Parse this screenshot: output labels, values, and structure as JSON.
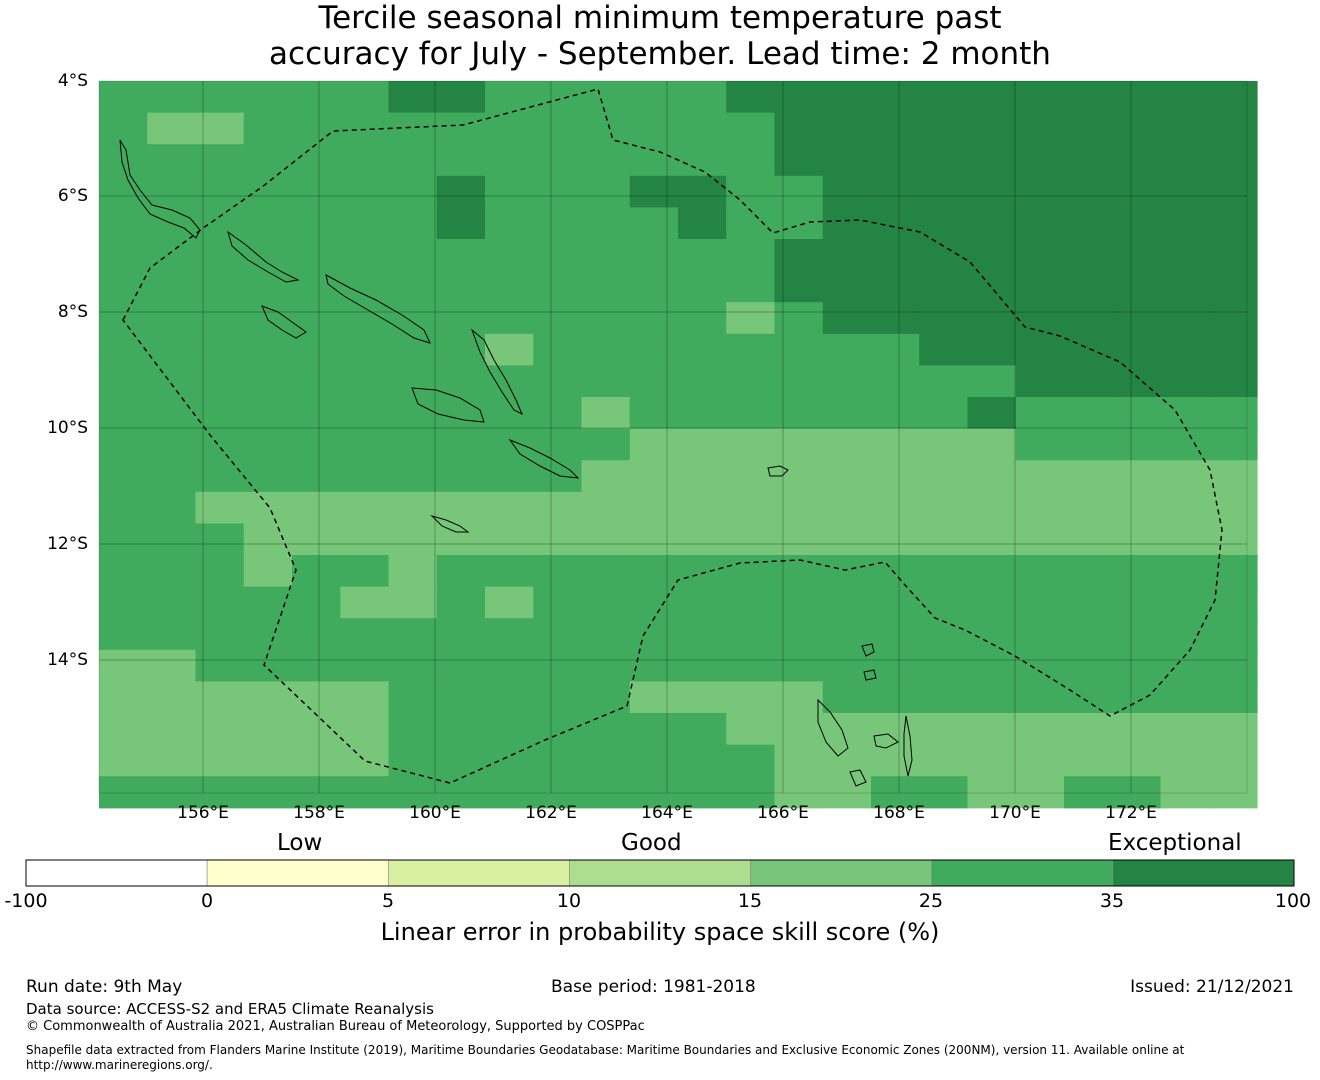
{
  "title": {
    "line1": "Tercile seasonal minimum temperature past",
    "line2": "accuracy for July - September. Lead time: 2 month"
  },
  "map": {
    "lat_labels": [
      "4°S",
      "6°S",
      "8°S",
      "10°S",
      "12°S",
      "14°S"
    ],
    "lon_labels": [
      "156°E",
      "158°E",
      "160°E",
      "162°E",
      "164°E",
      "166°E",
      "168°E",
      "170°E",
      "172°E"
    ],
    "colors": {
      "class_15_25": "#78c679",
      "class_25_35": "#41ab5d",
      "class_35_100": "#238443"
    },
    "boundary": "dashed maritime boundary (EEZ)"
  },
  "colorbar": {
    "categories": {
      "low": "Low",
      "good": "Good",
      "exceptional": "Exceptional"
    },
    "ticks": [
      "-100",
      "0",
      "5",
      "10",
      "15",
      "25",
      "35",
      "100"
    ],
    "colors": [
      "#ffffff",
      "#ffffcc",
      "#d9f0a3",
      "#addd8e",
      "#78c679",
      "#41ab5d",
      "#238443"
    ],
    "label": "Linear error in probability space skill score (%)"
  },
  "footer": {
    "run_date": "Run date: 9th May",
    "base_period": "Base period: 1981-2018",
    "issued": "Issued: 21/12/2021",
    "data_source": "Data source: ACCESS-S2 and ERA5 Climate Reanalysis",
    "copyright": "© Commonwealth of Australia 2021, Australian Bureau of Meteorology, Supported by COSPPac",
    "shapefile_line1": "Shapefile data extracted from Flanders Marine Institute (2019), Maritime Boundaries Geodatabase: Maritime Boundaries and Exclusive Economic Zones (200NM), version 11. Available online at",
    "shapefile_line2": "http://www.marineregions.org/."
  }
}
